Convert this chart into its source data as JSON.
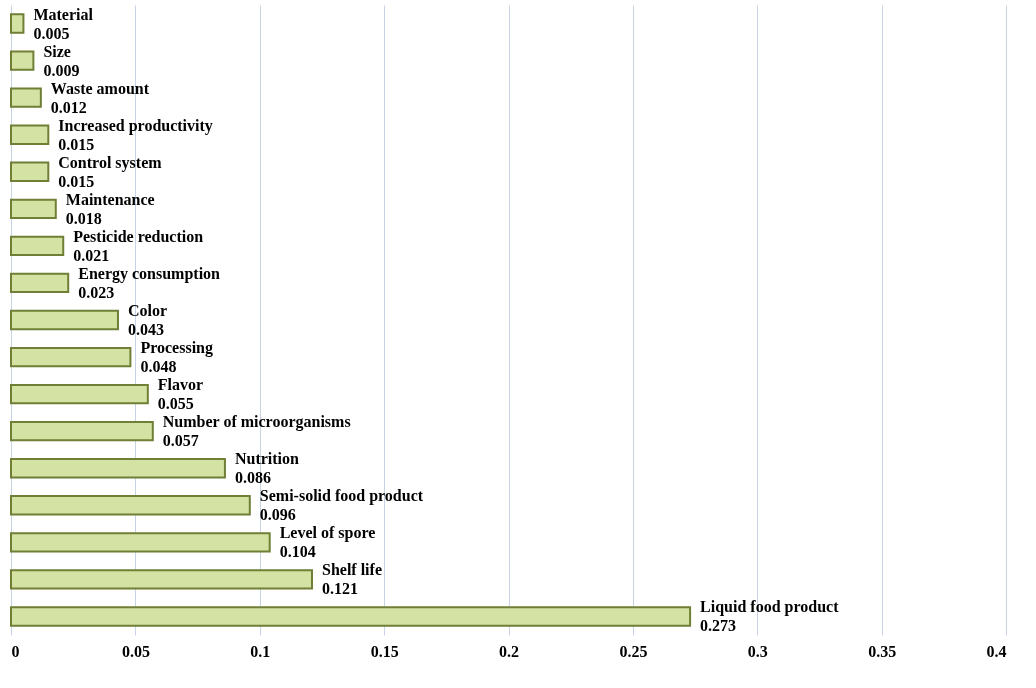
{
  "chart_data": {
    "type": "bar",
    "orientation": "horizontal",
    "categories": [
      "Material",
      "Size",
      "Waste amount",
      "Increased productivity",
      "Control system",
      "Maintenance",
      "Pesticide reduction",
      "Energy consumption",
      "Color",
      "Processing",
      "Flavor",
      "Number of microorganisms",
      "Nutrition",
      "Semi-solid food product",
      "Level of spore",
      "Shelf life",
      "Liquid food product"
    ],
    "values": [
      0.005,
      0.009,
      0.012,
      0.015,
      0.015,
      0.018,
      0.021,
      0.023,
      0.043,
      0.048,
      0.055,
      0.057,
      0.086,
      0.096,
      0.104,
      0.121,
      0.273
    ],
    "color": "#d4e3a4",
    "xlim": [
      0,
      0.4
    ],
    "xticks": [
      0,
      0.05,
      0.1,
      0.15,
      0.2,
      0.25,
      0.3,
      0.35,
      0.4
    ],
    "grid": "x",
    "data_labels": true,
    "tick_labels": "x"
  }
}
